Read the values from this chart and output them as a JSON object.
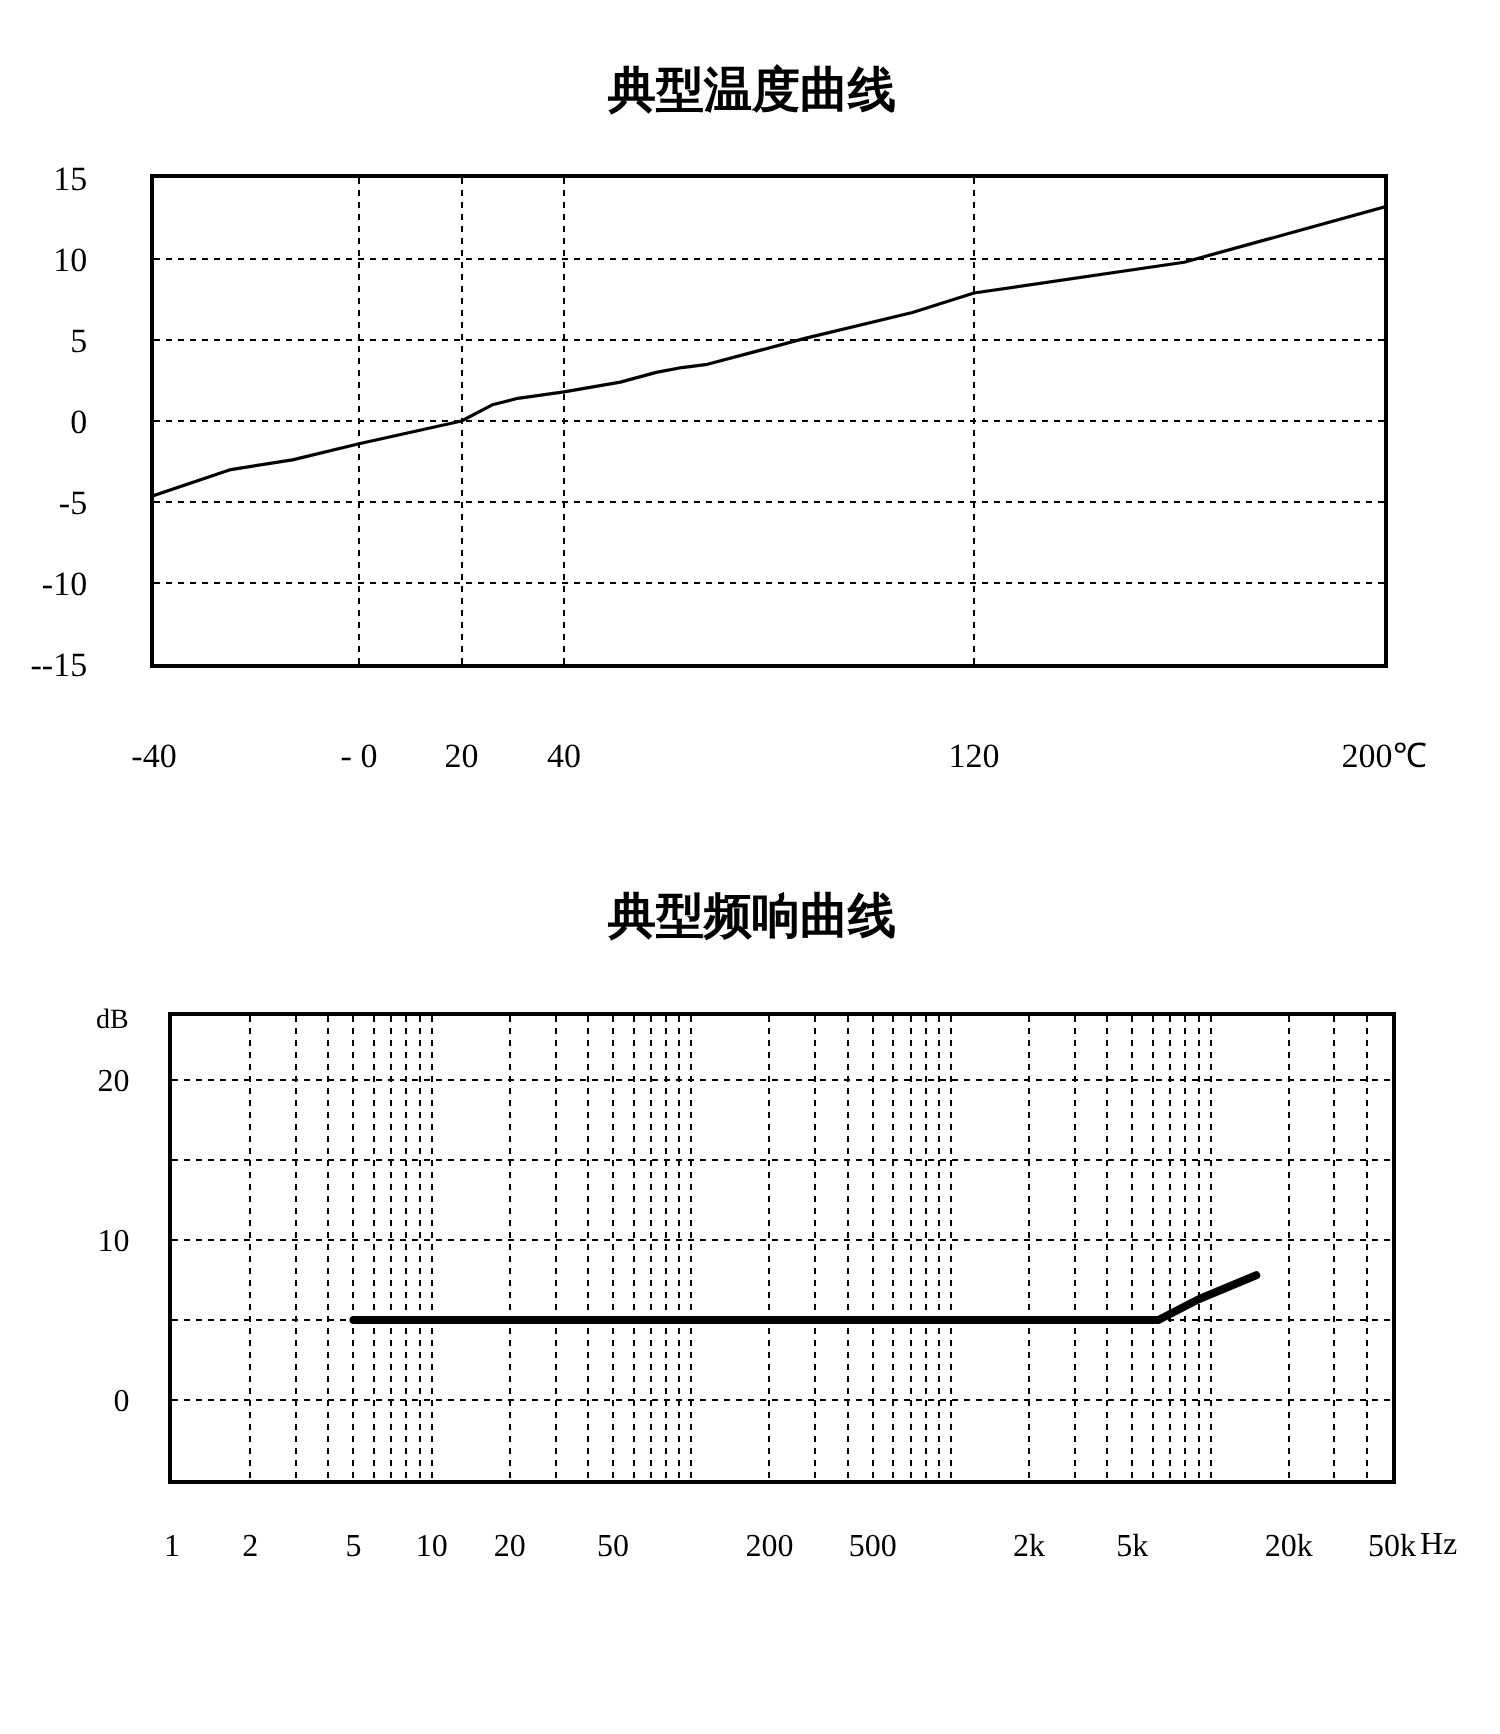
{
  "chart_data": [
    {
      "type": "line",
      "title": "典型温度曲线",
      "x": [
        -40,
        -25,
        -13,
        0,
        20,
        26,
        31,
        40,
        51,
        58,
        63,
        68,
        87,
        108,
        120,
        161,
        200
      ],
      "series": [
        {
          "color": "#000000",
          "values": [
            -4.6,
            -3.0,
            -2.4,
            -1.4,
            0,
            1.0,
            1.4,
            1.8,
            2.4,
            3.0,
            3.3,
            3.5,
            5.1,
            6.7,
            7.9,
            9.8,
            13.2
          ]
        }
      ],
      "xlim": [
        -40,
        200
      ],
      "xticks": [
        -40,
        {
          "value": 0,
          "label": "- 0"
        },
        20,
        40,
        120,
        {
          "value": 200,
          "label": "200℃"
        }
      ],
      "ylim": [
        -15,
        15
      ],
      "yticks": [
        15,
        10,
        5,
        0,
        -5,
        -10,
        {
          "value": -15,
          "label": "--15"
        }
      ],
      "grid": true
    },
    {
      "type": "line",
      "title": "典型频响曲线",
      "ylabel": "dB",
      "xlabel": "Hz",
      "x": [
        5,
        6300,
        9000,
        15000
      ],
      "series": [
        {
          "color": "#000000",
          "values": [
            5,
            5,
            6.3,
            7.8
          ]
        }
      ],
      "log": "x",
      "xlim": [
        1,
        50000
      ],
      "xticks": [
        1,
        2,
        {
          "value": 3,
          "label": null
        },
        {
          "value": 4,
          "label": null
        },
        5,
        {
          "value": 6,
          "label": null
        },
        {
          "value": 7,
          "label": null
        },
        {
          "value": 8,
          "label": null
        },
        {
          "value": 9,
          "label": null
        },
        10,
        20,
        {
          "value": 30,
          "label": null
        },
        {
          "value": 40,
          "label": null
        },
        50,
        {
          "value": 60,
          "label": null
        },
        {
          "value": 70,
          "label": null
        },
        {
          "value": 80,
          "label": null
        },
        {
          "value": 90,
          "label": null
        },
        {
          "value": 100,
          "label": null
        },
        200,
        {
          "value": 300,
          "label": null
        },
        {
          "value": 400,
          "label": null
        },
        500,
        {
          "value": 600,
          "label": null
        },
        {
          "value": 700,
          "label": null
        },
        {
          "value": 800,
          "label": null
        },
        {
          "value": 900,
          "label": null
        },
        {
          "value": 1000,
          "label": null
        },
        {
          "value": 2000,
          "label": "2k"
        },
        {
          "value": 3000,
          "label": null
        },
        {
          "value": 4000,
          "label": null
        },
        {
          "value": 5000,
          "label": "5k"
        },
        {
          "value": 6000,
          "label": null
        },
        {
          "value": 7000,
          "label": null
        },
        {
          "value": 8000,
          "label": null
        },
        {
          "value": 9000,
          "label": null
        },
        {
          "value": 10000,
          "label": null
        },
        {
          "value": 20000,
          "label": "20k"
        },
        {
          "value": 30000,
          "label": null
        },
        {
          "value": 40000,
          "label": null
        },
        {
          "value": 50000,
          "label": "50k"
        }
      ],
      "ylim": [
        -5,
        24
      ],
      "yticks": [
        20,
        {
          "value": 15,
          "label": null
        },
        10,
        {
          "value": 5,
          "label": null
        },
        0
      ],
      "grid": true
    }
  ]
}
